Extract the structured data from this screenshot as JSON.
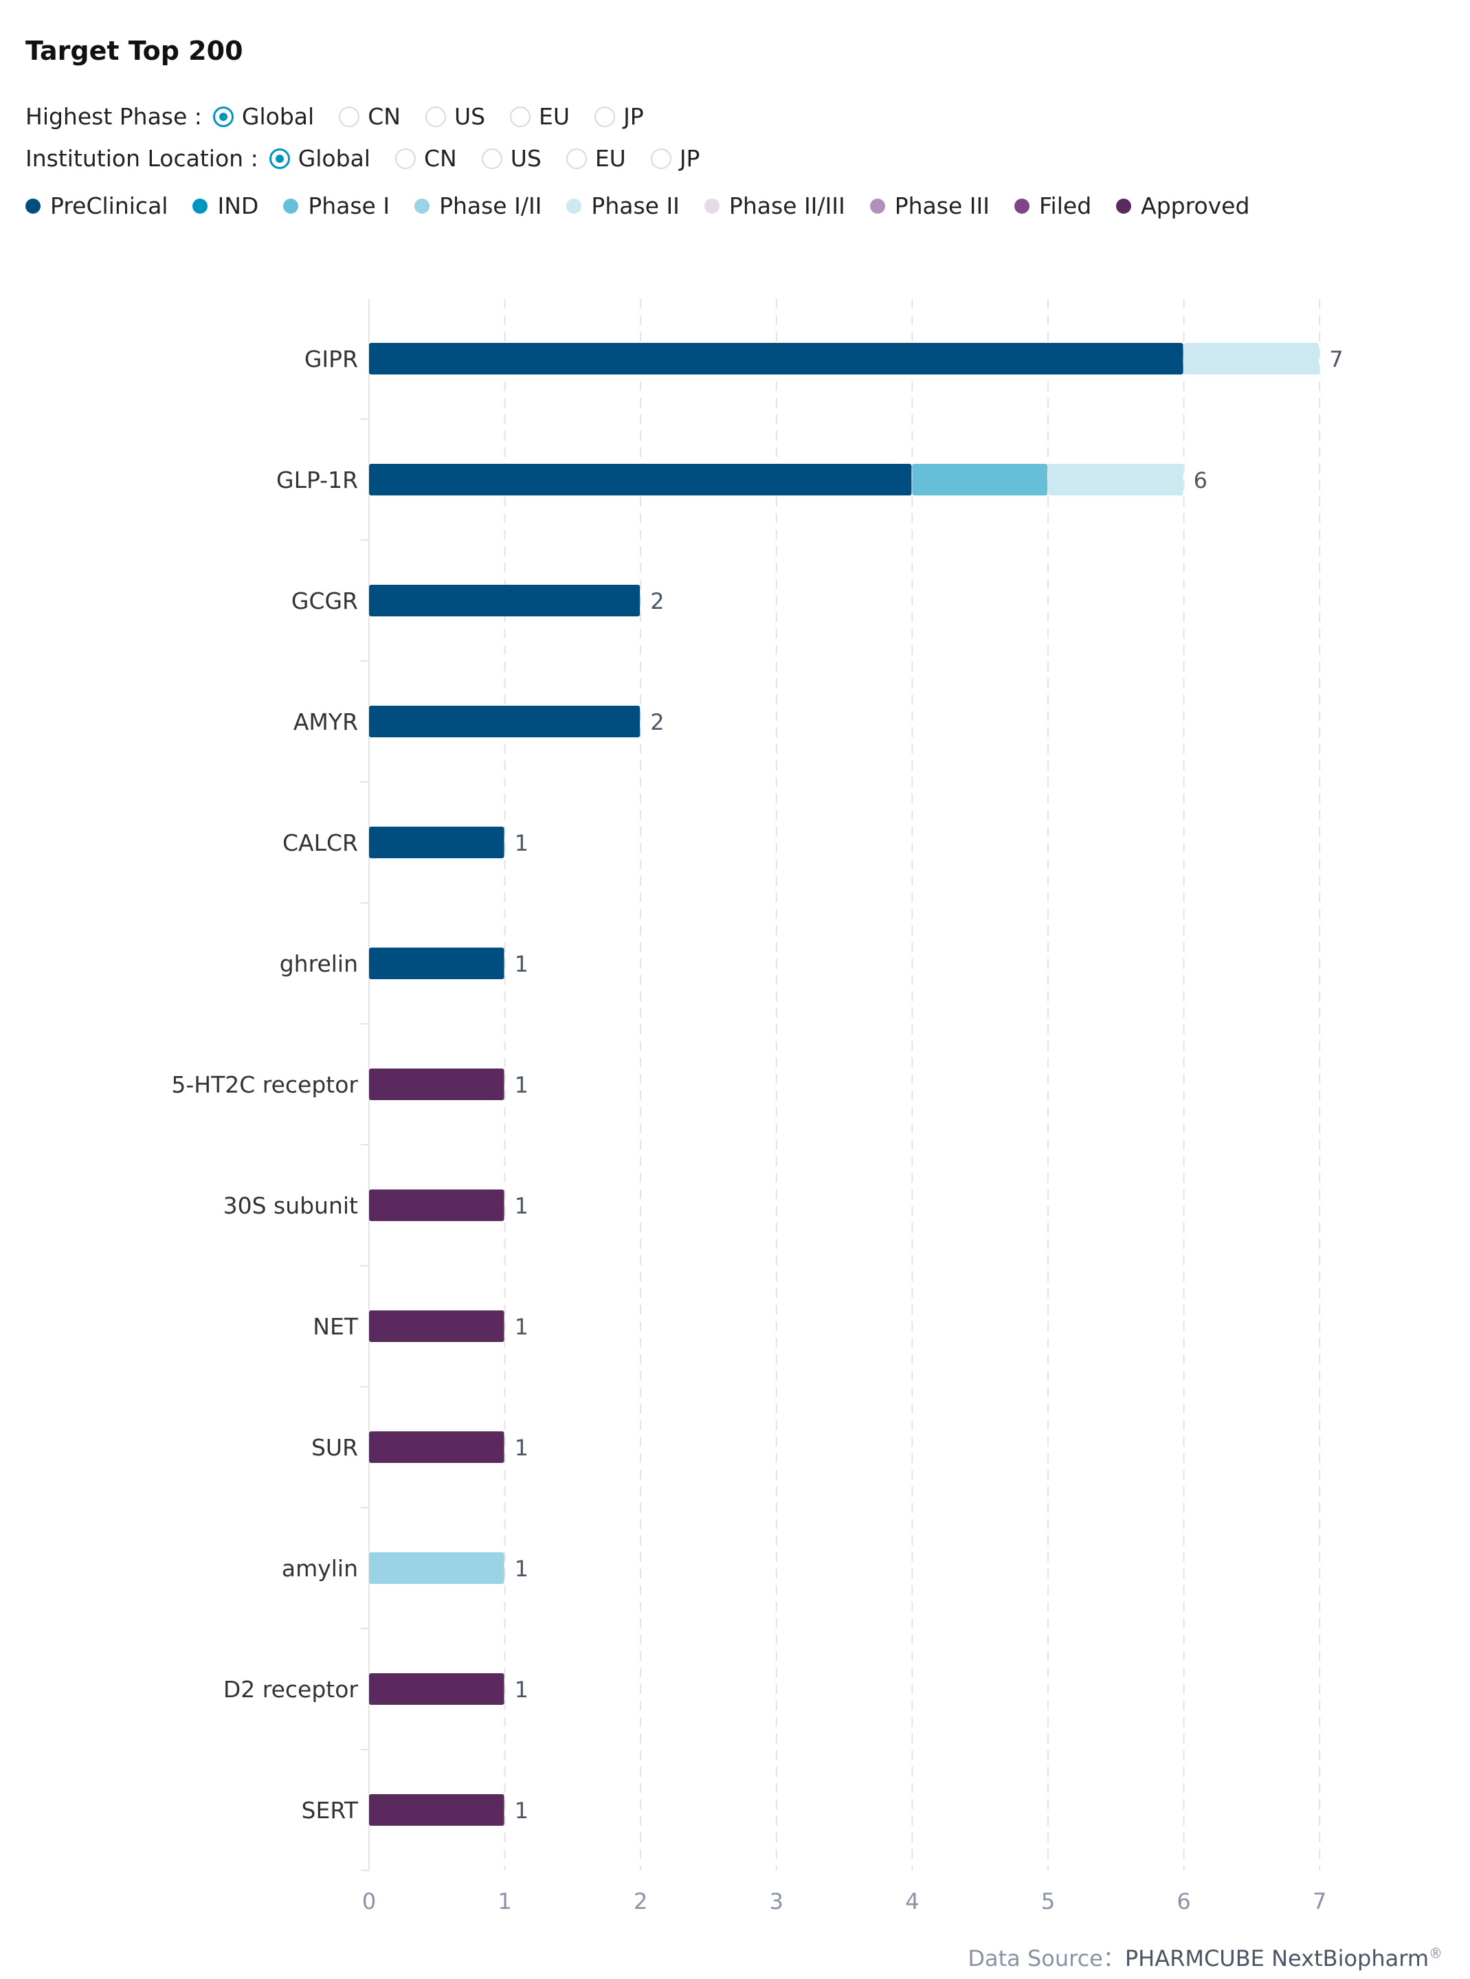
{
  "title": "Target Top 200",
  "filters": {
    "highest_phase": {
      "label": "Highest Phase :",
      "options": [
        "Global",
        "CN",
        "US",
        "EU",
        "JP"
      ],
      "selected": "Global"
    },
    "institution_location": {
      "label": "Institution Location :",
      "options": [
        "Global",
        "CN",
        "US",
        "EU",
        "JP"
      ],
      "selected": "Global"
    }
  },
  "footer": {
    "label": "Data Source：",
    "source": "PHARMCUBE NextBiopharm",
    "mark": "®"
  },
  "chart_data": {
    "type": "bar",
    "orientation": "horizontal",
    "stacked": true,
    "title": "Target Top 200",
    "xlim": [
      0,
      7
    ],
    "xticks": [
      "0",
      "1",
      "2",
      "3",
      "4",
      "5",
      "6",
      "7"
    ],
    "grid": true,
    "legend_position": "top-left",
    "categories": [
      "GIPR",
      "GLP-1R",
      "GCGR",
      "AMYR",
      "CALCR",
      "ghrelin",
      "5-HT2C receptor",
      "30S subunit",
      "NET",
      "SUR",
      "amylin",
      "D2 receptor",
      "SERT"
    ],
    "totals": [
      7,
      6,
      2,
      2,
      1,
      1,
      1,
      1,
      1,
      1,
      1,
      1,
      1
    ],
    "series": [
      {
        "name": "PreClinical",
        "color": "#004e80",
        "values": [
          6,
          4,
          2,
          2,
          1,
          1,
          0,
          0,
          0,
          0,
          0,
          0,
          0
        ]
      },
      {
        "name": "IND",
        "color": "#0095c0",
        "values": [
          0,
          0,
          0,
          0,
          0,
          0,
          0,
          0,
          0,
          0,
          0,
          0,
          0
        ]
      },
      {
        "name": "Phase I",
        "color": "#66bfd8",
        "values": [
          0,
          1,
          0,
          0,
          0,
          0,
          0,
          0,
          0,
          0,
          0,
          0,
          0
        ]
      },
      {
        "name": "Phase I/II",
        "color": "#99d3e5",
        "values": [
          0,
          0,
          0,
          0,
          0,
          0,
          0,
          0,
          0,
          0,
          1,
          0,
          0
        ]
      },
      {
        "name": "Phase II",
        "color": "#cce9f1",
        "values": [
          1,
          1,
          0,
          0,
          0,
          0,
          0,
          0,
          0,
          0,
          0,
          0,
          0
        ]
      },
      {
        "name": "Phase II/III",
        "color": "#e6dae9",
        "values": [
          0,
          0,
          0,
          0,
          0,
          0,
          0,
          0,
          0,
          0,
          0,
          0,
          0
        ]
      },
      {
        "name": "Phase III",
        "color": "#b38fbd",
        "values": [
          0,
          0,
          0,
          0,
          0,
          0,
          0,
          0,
          0,
          0,
          0,
          0,
          0
        ]
      },
      {
        "name": "Filed",
        "color": "#804488",
        "values": [
          0,
          0,
          0,
          0,
          0,
          0,
          0,
          0,
          0,
          0,
          0,
          0,
          0
        ]
      },
      {
        "name": "Approved",
        "color": "#5a2a5e",
        "values": [
          0,
          0,
          0,
          0,
          0,
          0,
          1,
          1,
          1,
          1,
          0,
          1,
          1
        ]
      }
    ]
  }
}
